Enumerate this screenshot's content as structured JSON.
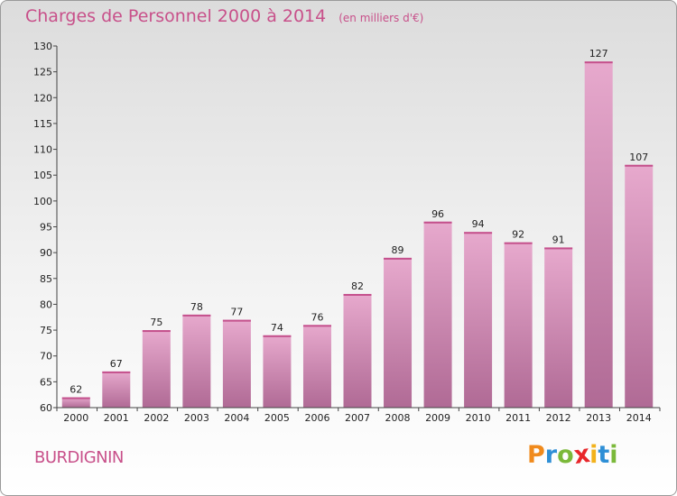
{
  "title": "Charges de Personnel 2000 à 2014",
  "subtitle": "(en milliers d'€)",
  "commune": "BURDIGNIN",
  "logo": {
    "text": "Proxiti",
    "letter_colors": [
      "#f08a1c",
      "#2e8fd6",
      "#7bb93a",
      "#e8262a",
      "#f2b21c",
      "#2e8fd6",
      "#7bb93a"
    ]
  },
  "colors": {
    "bar_top": "#e7a9cd",
    "bar_bottom": "#b06a95",
    "accent": "#c8508a"
  },
  "chart_data": {
    "type": "bar",
    "categories": [
      "2000",
      "2001",
      "2002",
      "2003",
      "2004",
      "2005",
      "2006",
      "2007",
      "2008",
      "2009",
      "2010",
      "2011",
      "2012",
      "2013",
      "2014"
    ],
    "values": [
      62,
      67,
      75,
      78,
      77,
      74,
      76,
      82,
      89,
      96,
      94,
      92,
      91,
      127,
      107
    ],
    "ylim": [
      60,
      130
    ],
    "yticks": [
      60,
      65,
      70,
      75,
      80,
      85,
      90,
      95,
      100,
      105,
      110,
      115,
      120,
      125,
      130
    ],
    "grid": false,
    "data_labels": true
  }
}
